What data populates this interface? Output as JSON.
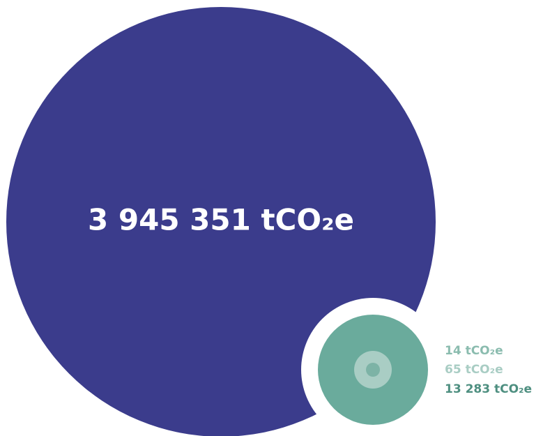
{
  "chart_data": {
    "type": "bubble",
    "values": [
      3945351,
      13283,
      65,
      14
    ],
    "value_labels": [
      "3 945 351 tCO₂e",
      "13 283 tCO₂e",
      "65 tCO₂e",
      "14 tCO₂e"
    ],
    "colors": [
      "#3b3c8c",
      "#6aab9c",
      "#a9cdc4",
      "#7db3a6"
    ],
    "label_colors": [
      "#ffffff",
      "#4e8f80",
      "#a9cdc4",
      "#8bbcaf"
    ]
  }
}
